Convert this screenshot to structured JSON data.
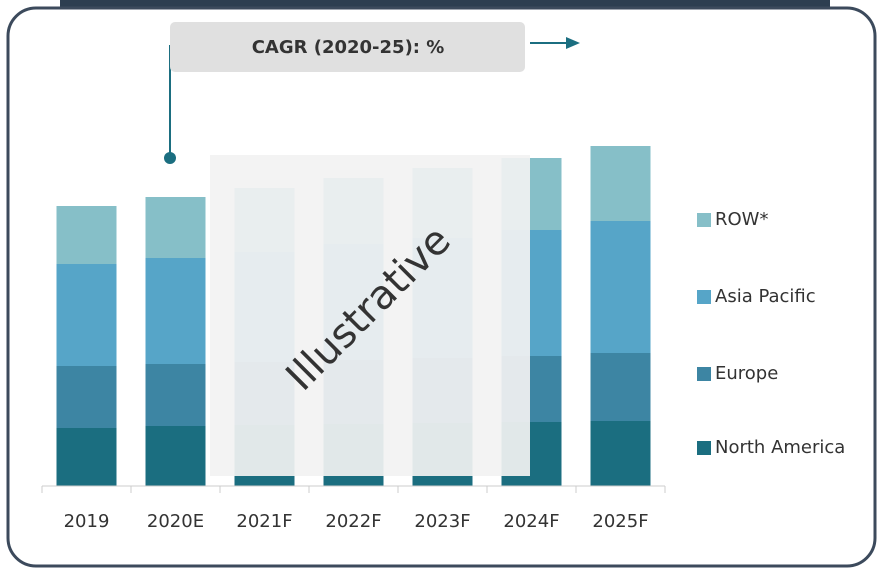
{
  "chart_data": {
    "type": "bar",
    "stacked": true,
    "callout": "CAGR (2020-25): %",
    "watermark": "Illustrative",
    "categories": [
      "2019",
      "2020E",
      "2021F",
      "2022F",
      "2023F",
      "2024F",
      "2025F"
    ],
    "series": [
      {
        "name": "North America",
        "color": "#1b6e80",
        "values": [
          58,
          60,
          61,
          62,
          63,
          64,
          65
        ]
      },
      {
        "name": "Europe",
        "color": "#3d85a3",
        "values": [
          62,
          62,
          63,
          64,
          65,
          66,
          68
        ]
      },
      {
        "name": "Asia Pacific",
        "color": "#56a5c8",
        "values": [
          102,
          106,
          110,
          116,
          120,
          126,
          132
        ]
      },
      {
        "name": "ROW*",
        "color": "#86bfc8",
        "values": [
          58,
          61,
          64,
          66,
          70,
          72,
          75
        ]
      }
    ],
    "ylim": [
      0,
      350
    ],
    "legend": "right"
  }
}
